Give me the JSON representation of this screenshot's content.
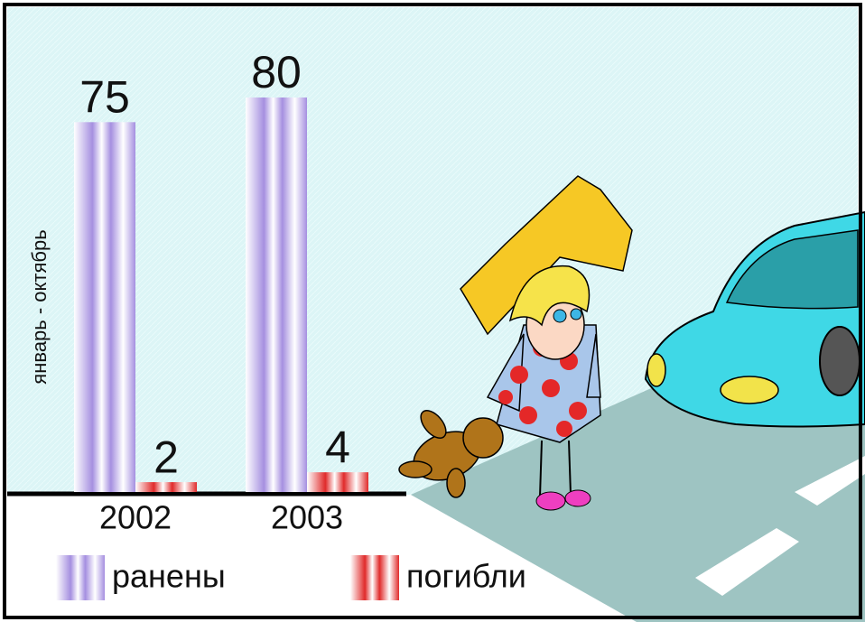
{
  "chart_data": {
    "type": "bar",
    "ylabel": "январь - октябрь",
    "categories": [
      "2002",
      "2003"
    ],
    "series": [
      {
        "name": "ранены",
        "color": "#a58fe0",
        "values": [
          75,
          80
        ]
      },
      {
        "name": "погибли",
        "color": "#e02a2a",
        "values": [
          2,
          4
        ]
      }
    ],
    "ylim": [
      0,
      80
    ]
  }
}
